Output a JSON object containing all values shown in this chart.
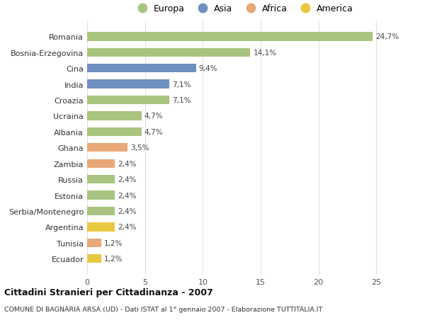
{
  "countries": [
    "Romania",
    "Bosnia-Erzegovina",
    "Cina",
    "India",
    "Croazia",
    "Ucraina",
    "Albania",
    "Ghana",
    "Zambia",
    "Russia",
    "Estonia",
    "Serbia/Montenegro",
    "Argentina",
    "Tunisia",
    "Ecuador"
  ],
  "values": [
    24.7,
    14.1,
    9.4,
    7.1,
    7.1,
    4.7,
    4.7,
    3.5,
    2.4,
    2.4,
    2.4,
    2.4,
    2.4,
    1.2,
    1.2
  ],
  "labels": [
    "24,7%",
    "14,1%",
    "9,4%",
    "7,1%",
    "7,1%",
    "4,7%",
    "4,7%",
    "3,5%",
    "2,4%",
    "2,4%",
    "2,4%",
    "2,4%",
    "2,4%",
    "1,2%",
    "1,2%"
  ],
  "continents": [
    "Europa",
    "Europa",
    "Asia",
    "Asia",
    "Europa",
    "Europa",
    "Europa",
    "Africa",
    "Africa",
    "Europa",
    "Europa",
    "Europa",
    "America",
    "Africa",
    "America"
  ],
  "colors": {
    "Europa": "#a8c480",
    "Asia": "#7090c0",
    "Africa": "#e8a878",
    "America": "#e8c840"
  },
  "title_bold": "Cittadini Stranieri per Cittadinanza - 2007",
  "subtitle": "COMUNE DI BAGNARIA ARSA (UD) - Dati ISTAT al 1° gennaio 2007 - Elaborazione TUTTITALIA.IT",
  "xlim": [
    0,
    27
  ],
  "xticks": [
    0,
    5,
    10,
    15,
    20,
    25
  ],
  "background_color": "#ffffff",
  "grid_color": "#e0e0e0"
}
